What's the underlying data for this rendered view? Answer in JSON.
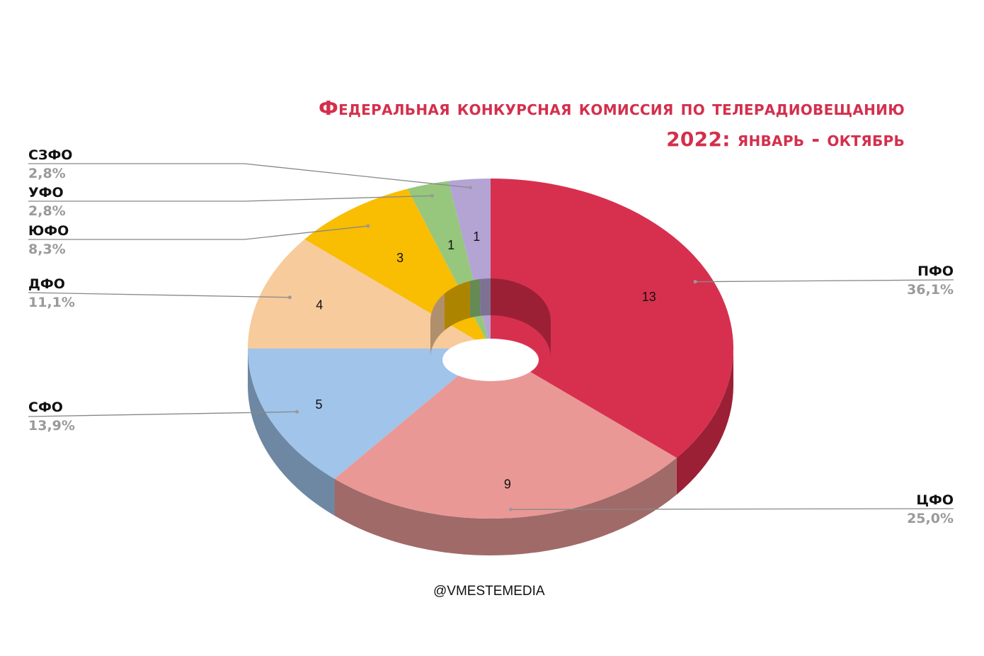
{
  "title": {
    "line1": "Федеральная конкурсная комиссия по телерадиовещанию",
    "line2": "2022: январь - октябрь"
  },
  "footer": "@VMESTEMEDIA",
  "chart_data": {
    "type": "pie",
    "subtype": "3d-donut",
    "total": 36,
    "slices": [
      {
        "name": "ПФО",
        "value": 13,
        "percent": "36,1%",
        "color": "#d7304f",
        "side": "#9b2036"
      },
      {
        "name": "ЦФО",
        "value": 9,
        "percent": "25,0%",
        "color": "#e99896",
        "side": "#a06a68"
      },
      {
        "name": "СФО",
        "value": 5,
        "percent": "13,9%",
        "color": "#a0c4ea",
        "side": "#6e88a3"
      },
      {
        "name": "ДФО",
        "value": 4,
        "percent": "11,1%",
        "color": "#f7cb9c",
        "side": "#b08f6c"
      },
      {
        "name": "ЮФО",
        "value": 3,
        "percent": "8,3%",
        "color": "#f9bd02",
        "side": "#ad8400"
      },
      {
        "name": "УФО",
        "value": 1,
        "percent": "2,8%",
        "color": "#96c77d",
        "side": "#668a55"
      },
      {
        "name": "СЗФО",
        "value": 1,
        "percent": "2,8%",
        "color": "#b3a4d4",
        "side": "#7d7294"
      }
    ]
  }
}
